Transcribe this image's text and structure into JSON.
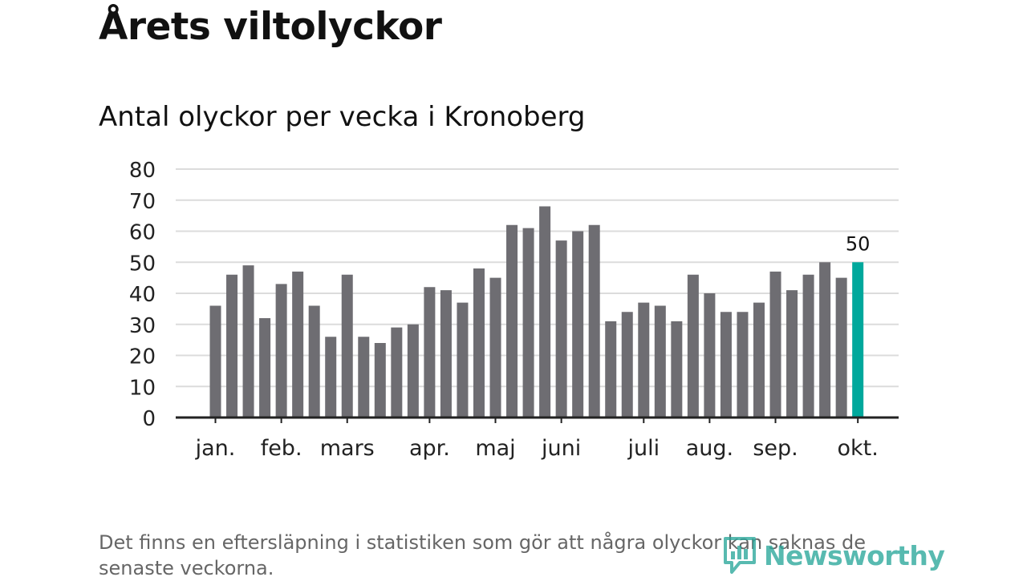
{
  "header": {
    "title": "Årets viltolyckor",
    "subtitle": "Antal olyckor per vecka i Kronoberg"
  },
  "chart_data": {
    "type": "bar",
    "title": "Årets viltolyckor",
    "subtitle": "Antal olyckor per vecka i Kronoberg",
    "xlabel": "",
    "ylabel": "",
    "ylim": [
      0,
      80
    ],
    "yticks": [
      0,
      10,
      20,
      30,
      40,
      50,
      60,
      70,
      80
    ],
    "grid": true,
    "month_labels": [
      {
        "label": "jan.",
        "week": 1
      },
      {
        "label": "feb.",
        "week": 5
      },
      {
        "label": "mars",
        "week": 9
      },
      {
        "label": "apr.",
        "week": 14
      },
      {
        "label": "maj",
        "week": 18
      },
      {
        "label": "juni",
        "week": 22
      },
      {
        "label": "juli",
        "week": 27
      },
      {
        "label": "aug.",
        "week": 31
      },
      {
        "label": "sep.",
        "week": 35
      },
      {
        "label": "okt.",
        "week": 40
      }
    ],
    "weeks": [
      1,
      2,
      3,
      4,
      5,
      6,
      7,
      8,
      9,
      10,
      11,
      12,
      13,
      14,
      15,
      16,
      17,
      18,
      19,
      20,
      21,
      22,
      23,
      24,
      25,
      26,
      27,
      28,
      29,
      30,
      31,
      32,
      33,
      34,
      35,
      36,
      37,
      38,
      39,
      40
    ],
    "values": [
      36,
      46,
      49,
      32,
      43,
      47,
      36,
      26,
      46,
      26,
      24,
      29,
      30,
      42,
      41,
      37,
      48,
      45,
      62,
      61,
      68,
      57,
      60,
      62,
      31,
      34,
      37,
      36,
      31,
      46,
      40,
      34,
      34,
      37,
      47,
      41,
      46,
      50,
      45,
      50
    ],
    "highlight_last": true,
    "highlight_label": "50",
    "colors": {
      "bar": "#6e6d72",
      "highlight": "#00a89c",
      "grid": "#dcdcdc",
      "axis": "#222222"
    }
  },
  "footnote": "Det finns en eftersläpning i statistiken som gör att några olyckor kan saknas de senaste veckorna.",
  "logo": {
    "text": "Newsworthy",
    "icon": "newsworthy-logo-icon",
    "color": "#2aa79b"
  }
}
